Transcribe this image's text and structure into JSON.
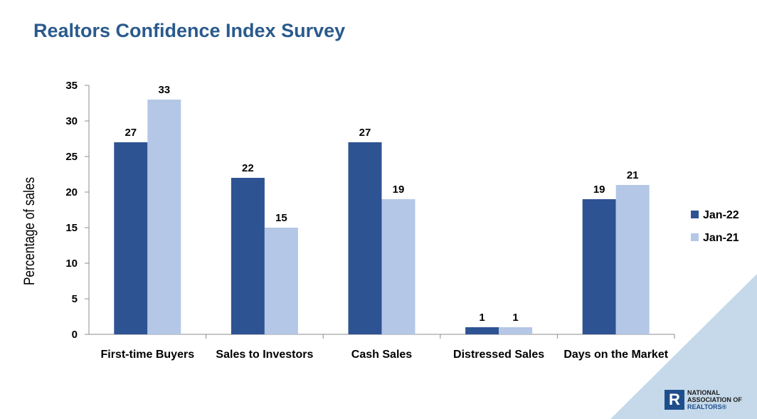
{
  "title": "Realtors Confidence Index Survey",
  "chart_data": {
    "type": "bar",
    "categories": [
      "First-time Buyers",
      "Sales to Investors",
      "Cash Sales",
      "Distressed Sales",
      "Days on the Market"
    ],
    "series": [
      {
        "name": "Jan-22",
        "values": [
          27,
          22,
          27,
          1,
          19
        ],
        "color": "#2e5393"
      },
      {
        "name": "Jan-21",
        "values": [
          33,
          15,
          19,
          1,
          21
        ],
        "color": "#b4c7e7"
      }
    ],
    "ylabel": "Percentage of  sales",
    "ylim": [
      0,
      35
    ],
    "yticks": [
      0,
      5,
      10,
      15,
      20,
      25,
      30,
      35
    ],
    "grid": false,
    "legend_position": "right"
  },
  "logo": {
    "mark": "R",
    "lines": [
      "NATIONAL",
      "ASSOCIATION OF",
      "REALTORS®"
    ]
  },
  "accent_color": "#c5d9ea"
}
